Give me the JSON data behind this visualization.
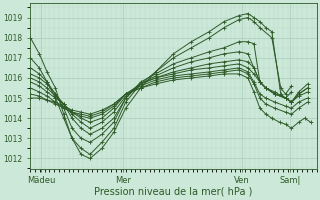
{
  "title": "",
  "xlabel": "Pression niveau de la mer( hPa )",
  "bg_color": "#cce8d8",
  "plot_bg_color": "#cce8d8",
  "line_color": "#2d5a27",
  "grid_major_color": "#aaceba",
  "grid_minor_color": "#bbd8ca",
  "yticks": [
    1012,
    1013,
    1014,
    1015,
    1016,
    1017,
    1018,
    1019
  ],
  "ylim": [
    1011.5,
    1019.7
  ],
  "xlim": [
    0.0,
    4.8
  ],
  "xtick_labels": [
    "Mädeu",
    "Mer",
    "Ven",
    "Sam|"
  ],
  "xtick_positions": [
    0.18,
    1.55,
    3.55,
    4.35
  ],
  "members": [
    {
      "x": [
        0.0,
        0.15,
        0.28,
        0.42,
        0.56,
        0.7,
        0.85,
        1.0,
        1.2,
        1.4,
        1.6,
        1.85,
        2.1,
        2.4,
        2.7,
        3.0,
        3.25,
        3.5,
        3.65,
        3.75,
        3.85,
        3.95,
        4.05,
        4.2,
        4.28,
        4.38
      ],
      "y": [
        1018.0,
        1017.2,
        1016.3,
        1015.5,
        1014.2,
        1013.0,
        1012.2,
        1012.0,
        1012.5,
        1013.3,
        1014.5,
        1015.5,
        1016.3,
        1017.2,
        1017.8,
        1018.3,
        1018.8,
        1019.1,
        1019.2,
        1019.0,
        1018.8,
        1018.5,
        1018.3,
        1015.2,
        1015.0,
        1015.3
      ]
    },
    {
      "x": [
        0.0,
        0.15,
        0.28,
        0.42,
        0.56,
        0.7,
        0.85,
        1.0,
        1.2,
        1.4,
        1.6,
        1.85,
        2.1,
        2.4,
        2.7,
        3.0,
        3.25,
        3.5,
        3.65,
        3.75,
        3.85,
        4.05,
        4.2,
        4.28,
        4.38
      ],
      "y": [
        1017.0,
        1016.5,
        1015.8,
        1015.0,
        1014.0,
        1013.0,
        1012.5,
        1012.2,
        1012.8,
        1013.5,
        1014.8,
        1015.7,
        1016.3,
        1017.0,
        1017.5,
        1018.0,
        1018.5,
        1018.9,
        1019.0,
        1018.8,
        1018.5,
        1018.0,
        1015.5,
        1015.2,
        1015.6
      ]
    },
    {
      "x": [
        0.0,
        0.15,
        0.28,
        0.42,
        0.56,
        0.7,
        0.85,
        1.0,
        1.2,
        1.4,
        1.6,
        1.85,
        2.1,
        2.4,
        2.7,
        3.0,
        3.25,
        3.5,
        3.65,
        3.75,
        3.85,
        3.95,
        4.1,
        4.28,
        4.38,
        4.5,
        4.65
      ],
      "y": [
        1016.5,
        1016.2,
        1015.8,
        1015.2,
        1014.5,
        1013.5,
        1013.0,
        1012.8,
        1013.2,
        1013.8,
        1015.0,
        1015.8,
        1016.2,
        1016.7,
        1017.0,
        1017.3,
        1017.5,
        1017.8,
        1017.8,
        1017.7,
        1015.8,
        1015.5,
        1015.3,
        1015.0,
        1014.8,
        1015.2,
        1015.5
      ]
    },
    {
      "x": [
        0.0,
        0.15,
        0.28,
        0.42,
        0.56,
        0.7,
        0.85,
        1.0,
        1.2,
        1.4,
        1.6,
        1.85,
        2.1,
        2.4,
        2.7,
        3.0,
        3.25,
        3.5,
        3.65,
        3.75,
        3.85,
        3.95,
        4.1,
        4.28,
        4.38,
        4.5,
        4.65
      ],
      "y": [
        1016.2,
        1016.0,
        1015.7,
        1015.2,
        1014.7,
        1014.0,
        1013.5,
        1013.2,
        1013.5,
        1014.0,
        1015.0,
        1015.7,
        1016.1,
        1016.5,
        1016.8,
        1017.0,
        1017.2,
        1017.3,
        1017.2,
        1016.5,
        1015.8,
        1015.5,
        1015.2,
        1015.0,
        1014.8,
        1015.3,
        1015.7
      ]
    },
    {
      "x": [
        0.0,
        0.15,
        0.28,
        0.42,
        0.56,
        0.7,
        0.85,
        1.0,
        1.2,
        1.4,
        1.6,
        1.85,
        2.1,
        2.4,
        2.7,
        3.0,
        3.25,
        3.5,
        3.65,
        3.75,
        3.85,
        3.95,
        4.1,
        4.28,
        4.38,
        4.5,
        4.65
      ],
      "y": [
        1016.0,
        1015.8,
        1015.5,
        1015.1,
        1014.7,
        1014.2,
        1013.8,
        1013.5,
        1013.8,
        1014.3,
        1015.1,
        1015.7,
        1016.0,
        1016.3,
        1016.5,
        1016.7,
        1016.8,
        1016.9,
        1016.8,
        1016.5,
        1015.8,
        1015.5,
        1015.2,
        1015.0,
        1014.8,
        1015.2,
        1015.5
      ]
    },
    {
      "x": [
        0.0,
        0.15,
        0.28,
        0.42,
        0.56,
        0.7,
        0.85,
        1.0,
        1.2,
        1.4,
        1.6,
        1.85,
        2.1,
        2.4,
        2.7,
        3.0,
        3.25,
        3.5,
        3.65,
        3.75,
        3.85,
        3.95,
        4.1,
        4.28,
        4.38,
        4.5,
        4.65
      ],
      "y": [
        1015.8,
        1015.6,
        1015.3,
        1015.0,
        1014.7,
        1014.3,
        1014.0,
        1013.8,
        1014.0,
        1014.5,
        1015.2,
        1015.7,
        1016.0,
        1016.2,
        1016.4,
        1016.5,
        1016.6,
        1016.7,
        1016.5,
        1016.2,
        1015.8,
        1015.5,
        1015.2,
        1015.0,
        1014.8,
        1015.1,
        1015.3
      ]
    },
    {
      "x": [
        0.0,
        0.15,
        0.28,
        0.42,
        0.56,
        0.7,
        0.85,
        1.0,
        1.2,
        1.4,
        1.6,
        1.85,
        2.1,
        2.4,
        2.7,
        3.0,
        3.25,
        3.5,
        3.65,
        3.75,
        3.85,
        3.95,
        4.1,
        4.28,
        4.38,
        4.5,
        4.65
      ],
      "y": [
        1015.5,
        1015.3,
        1015.1,
        1014.8,
        1014.5,
        1014.3,
        1014.1,
        1014.0,
        1014.2,
        1014.6,
        1015.2,
        1015.6,
        1015.9,
        1016.1,
        1016.2,
        1016.3,
        1016.4,
        1016.5,
        1016.3,
        1015.8,
        1015.2,
        1015.0,
        1014.8,
        1014.6,
        1014.5,
        1014.8,
        1015.0
      ]
    },
    {
      "x": [
        0.0,
        0.15,
        0.28,
        0.42,
        0.56,
        0.7,
        0.85,
        1.0,
        1.2,
        1.4,
        1.6,
        1.85,
        2.1,
        2.4,
        2.7,
        3.0,
        3.25,
        3.5,
        3.65,
        3.75,
        3.85,
        3.95,
        4.1,
        4.28,
        4.38,
        4.5,
        4.65
      ],
      "y": [
        1015.2,
        1015.1,
        1014.9,
        1014.7,
        1014.5,
        1014.3,
        1014.2,
        1014.1,
        1014.3,
        1014.7,
        1015.2,
        1015.5,
        1015.8,
        1016.0,
        1016.1,
        1016.2,
        1016.3,
        1016.4,
        1016.2,
        1015.7,
        1015.0,
        1014.7,
        1014.5,
        1014.3,
        1014.2,
        1014.5,
        1014.8
      ]
    },
    {
      "x": [
        0.0,
        0.15,
        0.28,
        0.42,
        0.56,
        0.7,
        0.85,
        1.0,
        1.2,
        1.4,
        1.6,
        1.85,
        2.1,
        2.4,
        2.7,
        3.0,
        3.25,
        3.5,
        3.65,
        3.75,
        3.85,
        3.95,
        4.05,
        4.18,
        4.28,
        4.38,
        4.5,
        4.6,
        4.7
      ],
      "y": [
        1015.0,
        1015.0,
        1014.9,
        1014.8,
        1014.6,
        1014.4,
        1014.3,
        1014.2,
        1014.4,
        1014.7,
        1015.2,
        1015.5,
        1015.7,
        1015.9,
        1016.0,
        1016.1,
        1016.2,
        1016.2,
        1016.0,
        1015.3,
        1014.5,
        1014.2,
        1014.0,
        1013.8,
        1013.7,
        1013.5,
        1013.8,
        1014.0,
        1013.8
      ]
    }
  ]
}
